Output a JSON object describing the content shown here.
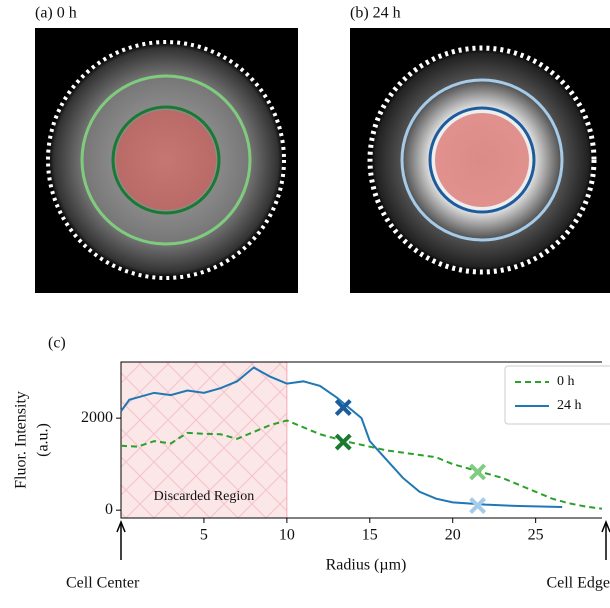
{
  "panels": {
    "a": "(a) 0 h",
    "b": "(b) 24 h",
    "c": "(c)"
  },
  "chart_data": {
    "type": "line",
    "x_label": "Radius (µm)",
    "y_label": [
      "Fluor. Intensity",
      "(a.u.)"
    ],
    "xlim": [
      0,
      29
    ],
    "ylim": [
      -170,
      3220
    ],
    "xticks": [
      5,
      10,
      15,
      20,
      25
    ],
    "yticks": [
      0,
      2000
    ],
    "legend": "upper right",
    "series": [
      {
        "name": "0 h",
        "color": "#2ca02c",
        "dash": true,
        "x": [
          0,
          1,
          2,
          3,
          4,
          5,
          6,
          7,
          8,
          9,
          10,
          11,
          12,
          13.5,
          15,
          16,
          17,
          18,
          19,
          20,
          21.5,
          23,
          24,
          25,
          26,
          27,
          28,
          29
        ],
        "values": [
          1400,
          1380,
          1500,
          1450,
          1680,
          1660,
          1650,
          1550,
          1700,
          1850,
          1950,
          1800,
          1650,
          1500,
          1380,
          1300,
          1250,
          1200,
          1150,
          1000,
          850,
          700,
          550,
          400,
          250,
          150,
          80,
          30
        ]
      },
      {
        "name": "24 h",
        "color": "#1f77b4",
        "dash": false,
        "x": [
          0,
          0.5,
          1,
          2,
          3,
          4,
          5,
          6,
          7,
          8,
          8.5,
          9,
          10,
          11,
          12,
          13,
          13.5,
          14.5,
          15,
          16,
          17,
          18,
          19,
          20,
          22,
          24,
          26.6
        ],
        "values": [
          2150,
          2400,
          2450,
          2550,
          2500,
          2600,
          2550,
          2650,
          2800,
          3100,
          3000,
          2900,
          2750,
          2800,
          2700,
          2450,
          2300,
          2000,
          1500,
          1100,
          700,
          400,
          250,
          170,
          120,
          90,
          70
        ]
      }
    ],
    "markers": [
      {
        "x": 13.4,
        "y": 2230,
        "color": "#1c5c9c"
      },
      {
        "x": 13.4,
        "y": 1480,
        "color": "#1a7a32"
      },
      {
        "x": 21.5,
        "y": 830,
        "color": "#80cc80"
      },
      {
        "x": 21.5,
        "y": 100,
        "color": "#a6cbe8"
      }
    ],
    "region": {
      "x": [
        0,
        10
      ],
      "label": "Discarded Region"
    },
    "annotations": [
      "Cell Center",
      "Cell Edge"
    ]
  }
}
